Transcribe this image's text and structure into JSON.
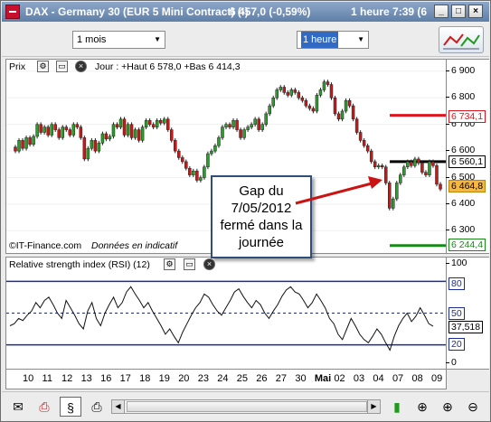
{
  "window": {
    "title": "DAX - Germany 30 (EUR 5 Mini Contract) (-)",
    "quote": "6 457,0 (-0,59%)",
    "time": "1 heure  7:39 (6..."
  },
  "window_buttons": [
    "_",
    "□",
    "×"
  ],
  "toolbar": {
    "period_select": "1 mois",
    "interval_select": "1 heure",
    "indicator_button_icon": "chart-indicators-icon"
  },
  "price_panel": {
    "label": "Prix",
    "ohlc_text": "Jour : +Haut 6 578,0 +Bas 6 414,3",
    "credit": "©IT-Finance.com",
    "disclaimer": "Données en indicatif",
    "red_level": "6 734,1",
    "black_level": "6 560,1",
    "last_price": "6 464,8",
    "green_level": "6 244,4"
  },
  "rsi_panel": {
    "label": "Relative strength index (RSI) (12)",
    "current_value": "37,518",
    "levels": [
      "100",
      "80",
      "50",
      "20",
      "0"
    ]
  },
  "annotation": {
    "lines": [
      "Gap du",
      "7/05/2012",
      "fermé dans la",
      "journée"
    ]
  },
  "colors": {
    "up_candle": "#2c9c2c",
    "down_candle": "#c41a1a",
    "red_line": "#e0141e",
    "green_line": "#178a17",
    "rsi_band": "#1c2b9c",
    "callout_border": "#2f4d7a",
    "last_price_bg": "#f6b742"
  },
  "chart_data": {
    "type": "candlestick",
    "y_ticks": [
      "6 900",
      "6 800",
      "6 700",
      "6 600",
      "6 500",
      "6 400",
      "6 300"
    ],
    "y_range": [
      6230,
      6930
    ],
    "x_ticks": [
      "10",
      "11",
      "12",
      "13",
      "16",
      "17",
      "18",
      "19",
      "20",
      "23",
      "24",
      "25",
      "26",
      "27",
      "30",
      "Mai",
      "02",
      "03",
      "04",
      "07",
      "08",
      "09"
    ],
    "price_path": [
      6615,
      6600,
      6640,
      6610,
      6650,
      6625,
      6655,
      6700,
      6670,
      6690,
      6660,
      6700,
      6680,
      6650,
      6690,
      6680,
      6660,
      6700,
      6690,
      6650,
      6570,
      6610,
      6640,
      6600,
      6630,
      6665,
      6645,
      6655,
      6700,
      6690,
      6720,
      6660,
      6700,
      6650,
      6680,
      6640,
      6690,
      6715,
      6700,
      6690,
      6715,
      6705,
      6720,
      6680,
      6640,
      6600,
      6575,
      6560,
      6535,
      6510,
      6525,
      6490,
      6500,
      6540,
      6590,
      6600,
      6620,
      6650,
      6690,
      6700,
      6690,
      6715,
      6680,
      6650,
      6680,
      6690,
      6700,
      6720,
      6680,
      6700,
      6740,
      6770,
      6800,
      6830,
      6840,
      6820,
      6810,
      6830,
      6820,
      6800,
      6790,
      6770,
      6760,
      6750,
      6810,
      6830,
      6860,
      6850,
      6800,
      6740,
      6720,
      6750,
      6790,
      6770,
      6720,
      6670,
      6640,
      6620,
      6600,
      6560,
      6540,
      6545,
      6540,
      6480,
      6385,
      6420,
      6480,
      6510,
      6540,
      6560,
      6545,
      6570,
      6555,
      6520,
      6510,
      6560,
      6545,
      6475,
      6457
    ],
    "red_level": 6734.1,
    "black_level": 6560.1,
    "green_level": 6244.4,
    "last_price": 6464.8,
    "rsi_range": [
      0,
      100
    ],
    "rsi_bands": [
      80,
      50,
      20
    ],
    "rsi_path": [
      38,
      40,
      45,
      43,
      48,
      52,
      60,
      55,
      62,
      65,
      58,
      50,
      45,
      62,
      55,
      48,
      40,
      35,
      52,
      60,
      45,
      38,
      50,
      58,
      65,
      55,
      60,
      70,
      75,
      68,
      62,
      55,
      60,
      52,
      45,
      38,
      30,
      35,
      28,
      22,
      32,
      40,
      48,
      55,
      60,
      68,
      65,
      58,
      52,
      48,
      55,
      62,
      70,
      73,
      66,
      60,
      55,
      62,
      58,
      50,
      45,
      52,
      58,
      66,
      72,
      75,
      70,
      68,
      62,
      55,
      60,
      68,
      62,
      55,
      45,
      40,
      30,
      25,
      35,
      45,
      38,
      30,
      25,
      22,
      28,
      35,
      30,
      22,
      15,
      28,
      38,
      45,
      50,
      42,
      47,
      55,
      48,
      40,
      37.5
    ]
  }
}
